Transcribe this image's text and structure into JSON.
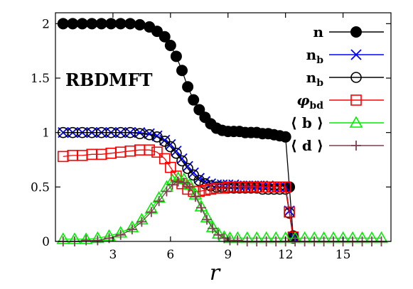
{
  "chart_data": {
    "type": "scatter",
    "title": "",
    "annotation": "RBDMFT",
    "xlabel": "r",
    "ylabel": "",
    "xlim": [
      0,
      17.5
    ],
    "ylim": [
      0,
      2.1
    ],
    "xticks": [
      3,
      6,
      9,
      12,
      15
    ],
    "yticks": [
      0,
      0.5,
      1,
      1.5,
      2
    ],
    "xtick_labels": [
      "3",
      "6",
      "9",
      "12",
      "15"
    ],
    "ytick_labels": [
      "0",
      "0.5",
      "1",
      "1.5",
      "2"
    ],
    "grid": false,
    "legend_position": "top-right",
    "series": [
      {
        "name": "n",
        "color": "#000000",
        "marker": "filled-circle",
        "x": [
          0.4,
          0.9,
          1.4,
          1.9,
          2.4,
          2.9,
          3.4,
          3.9,
          4.4,
          4.9,
          5.3,
          5.7,
          6.0,
          6.3,
          6.6,
          6.9,
          7.2,
          7.5,
          7.8,
          8.1,
          8.4,
          8.7,
          9.0,
          9.3,
          9.6,
          9.9,
          10.2,
          10.5,
          10.8,
          11.1,
          11.4,
          11.7,
          12.0,
          12.2,
          12.4
        ],
        "y": [
          2.0,
          2.0,
          2.0,
          2.0,
          2.0,
          2.0,
          2.0,
          2.0,
          1.99,
          1.97,
          1.93,
          1.88,
          1.8,
          1.7,
          1.57,
          1.42,
          1.3,
          1.21,
          1.14,
          1.08,
          1.04,
          1.02,
          1.01,
          1.01,
          1.01,
          1.0,
          1.0,
          1.0,
          0.99,
          0.99,
          0.98,
          0.97,
          0.96,
          0.5,
          0.05
        ]
      },
      {
        "name": "n_b",
        "color": "#0000ff",
        "marker": "x-cross",
        "x": [
          0.4,
          0.9,
          1.4,
          1.9,
          2.4,
          2.9,
          3.4,
          3.9,
          4.4,
          4.9,
          5.3,
          5.7,
          6.0,
          6.3,
          6.6,
          6.9,
          7.2,
          7.5,
          7.8,
          8.1,
          8.4,
          8.7,
          9.0,
          9.3,
          9.6,
          9.9,
          10.2,
          10.5,
          10.8,
          11.1,
          11.4,
          11.7,
          12.0,
          12.2,
          12.4
        ],
        "y": [
          1.0,
          1.0,
          1.0,
          1.0,
          1.0,
          1.0,
          1.0,
          1.0,
          1.0,
          0.99,
          0.97,
          0.93,
          0.89,
          0.83,
          0.76,
          0.69,
          0.63,
          0.58,
          0.55,
          0.53,
          0.52,
          0.52,
          0.52,
          0.52,
          0.51,
          0.51,
          0.51,
          0.51,
          0.51,
          0.51,
          0.5,
          0.5,
          0.5,
          0.28,
          0.04
        ]
      },
      {
        "name": "n_b",
        "color": "#000000",
        "marker": "open-circle",
        "x": [
          0.4,
          0.9,
          1.4,
          1.9,
          2.4,
          2.9,
          3.4,
          3.9,
          4.4,
          4.9,
          5.3,
          5.7,
          6.0,
          6.3,
          6.6,
          6.9,
          7.2,
          7.5,
          7.8,
          8.1,
          8.4,
          8.7,
          9.0,
          9.3,
          9.6,
          9.9,
          10.2,
          10.5,
          10.8,
          11.1,
          11.4,
          11.7,
          12.0,
          12.2,
          12.4
        ],
        "y": [
          1.0,
          1.0,
          1.0,
          1.0,
          1.0,
          1.0,
          1.0,
          1.0,
          0.99,
          0.98,
          0.96,
          0.92,
          0.87,
          0.81,
          0.74,
          0.67,
          0.61,
          0.56,
          0.53,
          0.51,
          0.5,
          0.5,
          0.49,
          0.49,
          0.49,
          0.49,
          0.49,
          0.49,
          0.48,
          0.48,
          0.48,
          0.48,
          0.48,
          0.26,
          0.03
        ]
      },
      {
        "name": "phi_bd",
        "color": "#ff0000",
        "marker": "open-square",
        "x": [
          0.4,
          0.9,
          1.4,
          1.9,
          2.4,
          2.9,
          3.4,
          3.9,
          4.4,
          4.9,
          5.3,
          5.7,
          6.0,
          6.3,
          6.6,
          6.9,
          7.2,
          7.5,
          7.8,
          8.1,
          8.4,
          8.7,
          9.0,
          9.3,
          9.6,
          9.9,
          10.2,
          10.5,
          10.8,
          11.1,
          11.4,
          11.7,
          12.0,
          12.2,
          12.4
        ],
        "y": [
          0.78,
          0.79,
          0.79,
          0.8,
          0.8,
          0.81,
          0.82,
          0.83,
          0.84,
          0.84,
          0.82,
          0.76,
          0.68,
          0.6,
          0.53,
          0.48,
          0.46,
          0.46,
          0.47,
          0.48,
          0.49,
          0.49,
          0.5,
          0.5,
          0.5,
          0.5,
          0.5,
          0.5,
          0.5,
          0.5,
          0.5,
          0.5,
          0.5,
          0.27,
          0.04
        ]
      },
      {
        "name": "<b>",
        "color": "#00ee00",
        "marker": "open-triangle",
        "x": [
          0.4,
          1.0,
          1.6,
          2.2,
          2.8,
          3.4,
          4.0,
          4.5,
          5.0,
          5.4,
          5.8,
          6.1,
          6.4,
          6.7,
          7.0,
          7.3,
          7.6,
          7.9,
          8.2,
          8.5,
          8.8,
          9.1,
          9.5,
          10.0,
          10.5,
          11.0,
          11.5,
          12.0,
          12.5,
          13.0,
          13.5,
          14.0,
          14.5,
          15.0,
          15.5,
          16.0,
          16.5,
          17.0
        ],
        "y": [
          0.02,
          0.02,
          0.02,
          0.03,
          0.05,
          0.08,
          0.13,
          0.2,
          0.3,
          0.4,
          0.5,
          0.56,
          0.58,
          0.57,
          0.52,
          0.43,
          0.32,
          0.22,
          0.13,
          0.07,
          0.04,
          0.03,
          0.03,
          0.03,
          0.03,
          0.03,
          0.03,
          0.03,
          0.03,
          0.03,
          0.03,
          0.03,
          0.03,
          0.03,
          0.03,
          0.03,
          0.03,
          0.03
        ]
      },
      {
        "name": "<d>",
        "color": "#7f3f4f",
        "marker": "plus",
        "x": [
          0.4,
          1.0,
          1.6,
          2.2,
          2.8,
          3.4,
          4.0,
          4.5,
          5.0,
          5.4,
          5.8,
          6.1,
          6.4,
          6.7,
          7.0,
          7.3,
          7.6,
          7.9,
          8.2,
          8.5,
          8.8,
          9.1,
          9.5,
          10.0,
          10.5,
          11.0,
          11.5,
          12.0,
          12.5,
          13.0,
          13.5,
          14.0,
          14.5,
          15.0,
          15.5,
          16.0,
          16.5,
          17.0
        ],
        "y": [
          0.0,
          0.0,
          0.01,
          0.01,
          0.03,
          0.06,
          0.11,
          0.18,
          0.27,
          0.37,
          0.46,
          0.52,
          0.55,
          0.54,
          0.5,
          0.41,
          0.31,
          0.2,
          0.12,
          0.06,
          0.03,
          0.01,
          0.01,
          0.0,
          0.0,
          0.0,
          0.0,
          0.0,
          0.0,
          0.0,
          0.0,
          0.0,
          0.0,
          0.0,
          0.0,
          0.0,
          0.0,
          0.0
        ]
      }
    ]
  }
}
